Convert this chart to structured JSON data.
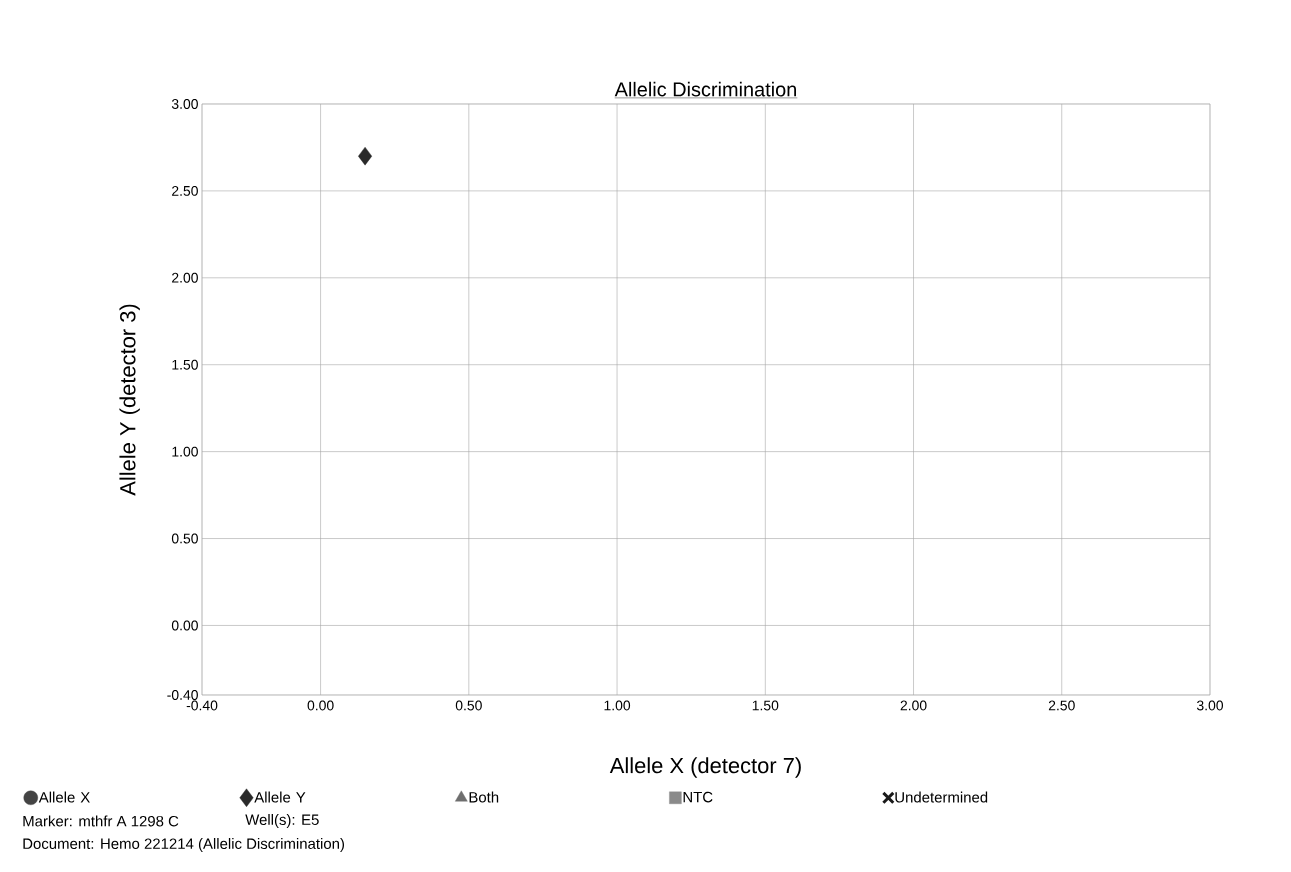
{
  "chart_data": {
    "type": "scatter",
    "title": "Allelic Discrimination",
    "xlabel": "Allele X (detector 7)",
    "ylabel": "Allele Y (detector 3)",
    "xlim": [
      -0.4,
      3.0
    ],
    "ylim": [
      -0.4,
      3.0
    ],
    "xticks": [
      {
        "value": -0.4,
        "label": "-0.40"
      },
      {
        "value": 0,
        "label": "0.00"
      },
      {
        "value": 0.5,
        "label": "0.50"
      },
      {
        "value": 1,
        "label": "1.00"
      },
      {
        "value": 1.5,
        "label": "1.50"
      },
      {
        "value": 2,
        "label": "2.00"
      },
      {
        "value": 2.5,
        "label": "2.50"
      },
      {
        "value": 3,
        "label": "3.00"
      }
    ],
    "yticks": [
      {
        "value": -0.4,
        "label": "-0.40"
      },
      {
        "value": 0,
        "label": "0.00"
      },
      {
        "value": 0.5,
        "label": "0.50"
      },
      {
        "value": 1,
        "label": "1.00"
      },
      {
        "value": 1.5,
        "label": "1.50"
      },
      {
        "value": 2,
        "label": "2.00"
      },
      {
        "value": 2.5,
        "label": "2.50"
      },
      {
        "value": 3,
        "label": "3.00"
      }
    ],
    "grid": true,
    "legend": "bottom",
    "series": [
      {
        "name": "Allele X",
        "color": "#444444",
        "marker": "circle"
      },
      {
        "name": "Allele Y",
        "color": "#2a2a2a",
        "marker": "diamond",
        "x": [
          0.15
        ],
        "values": [
          2.7
        ]
      },
      {
        "name": "Both",
        "color": "#6e6e6e",
        "marker": "triangle"
      },
      {
        "name": "NTC",
        "color": "#8a8a8a",
        "marker": "square"
      },
      {
        "name": "Undetermined",
        "color": "#1a1a1a",
        "marker": "cross"
      }
    ],
    "annotations": [
      "Marker: mthfr A 1298 C",
      "Well(s): E5",
      "Document: Hemo 221214 (Allelic Discrimination)"
    ]
  }
}
